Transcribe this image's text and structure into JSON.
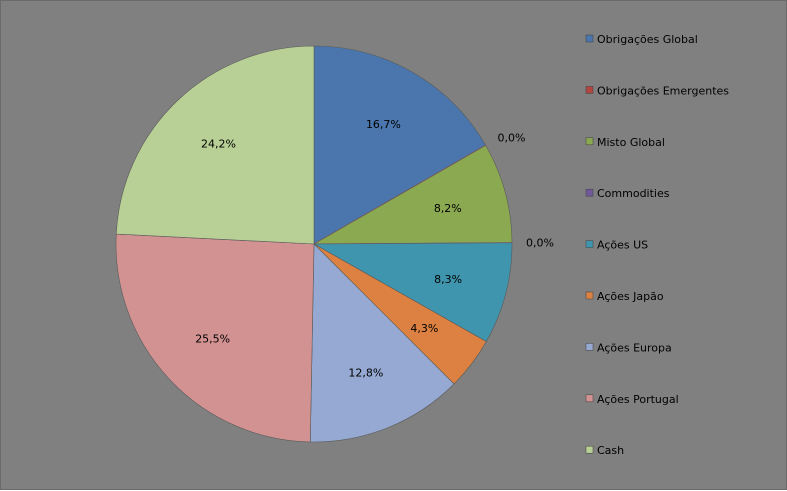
{
  "chart_data": {
    "type": "pie",
    "title": "",
    "legend_position": "right",
    "start_angle_deg": 0,
    "direction": "clockwise",
    "slices": [
      {
        "label": "Obrigações Global",
        "value": 16.7,
        "display": "16,7%",
        "color": "#4a76ad"
      },
      {
        "label": "Obrigações Emergentes",
        "value": 0.0,
        "display": "0,0%",
        "color": "#b14641"
      },
      {
        "label": "Misto Global",
        "value": 8.2,
        "display": "8,2%",
        "color": "#8ba950"
      },
      {
        "label": "Commodities",
        "value": 0.0,
        "display": "0,0%",
        "color": "#71589a"
      },
      {
        "label": "Ações US",
        "value": 8.3,
        "display": "8,3%",
        "color": "#3f95ad"
      },
      {
        "label": "Ações Japão",
        "value": 4.3,
        "display": "4,3%",
        "color": "#dc8141"
      },
      {
        "label": "Ações Europa",
        "value": 12.8,
        "display": "12,8%",
        "color": "#95a9d2"
      },
      {
        "label": "Ações Portugal",
        "value": 25.5,
        "display": "25,5%",
        "color": "#d39292"
      },
      {
        "label": "Cash",
        "value": 24.2,
        "display": "24,2%",
        "color": "#b8d096"
      }
    ]
  }
}
